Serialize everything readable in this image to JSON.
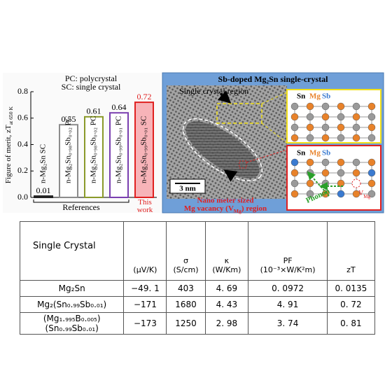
{
  "chart_data": {
    "type": "bar",
    "title": [
      "PC: polycrystal",
      "SC: single crystal"
    ],
    "y_label": {
      "text": "Figure of merit, zT",
      "sub": "at 650 K"
    },
    "categories": [
      "n-Mg₂Sn SC",
      "n-Mg₂Sn₀.₉₈Sb₀.₀₂ PC",
      "n-Mg₂Sn₀.₉₈Sb₀.₀₂ PC",
      "n-Mg₂Sn₀.₉₉Sb₀.₀₁ PC",
      "n-Mg₂Sn₀.₉₉Sb₀.₀₁ SC"
    ],
    "values": [
      0.01,
      0.55,
      0.61,
      0.64,
      0.72
    ],
    "colors": [
      "#222222",
      "#8c8c8c",
      "#8a9a2a",
      "#7a3fb0",
      "#e02020"
    ],
    "fills": [
      "#ffffff",
      "#ffffff",
      "#ffffff",
      "#ffffff",
      "#f7b3b8"
    ],
    "ylim": [
      0,
      0.8
    ],
    "yticks": [
      {
        "value": 0,
        "label": "0.0"
      },
      0.2,
      0.4,
      0.6,
      0.8
    ],
    "annotations": [
      "References",
      "This work"
    ]
  },
  "image_panel": {
    "title": "Sb-doped Mg₂Sn single-crystal",
    "region_label": "Single crystal region",
    "scale_bar": "3 nm",
    "vacancy_label": [
      "Nano meter sized",
      {
        "text": "Mg vacancy (V",
        "sub": "Mg",
        "tail": ") region"
      }
    ],
    "lattice_top": {
      "legend": [
        "Sn",
        "Mg",
        "Sb"
      ]
    },
    "lattice_bottom": {
      "legend": [
        "Sn",
        "Mg",
        "Sb"
      ],
      "vacancy": {
        "text": "V",
        "sub": "Mg"
      },
      "phonon": "Phonon"
    }
  },
  "table": {
    "header": [
      [
        "Single Crystal"
      ],
      [
        "(μV/K)"
      ],
      [
        "σ",
        "(S/cm)"
      ],
      [
        "κ",
        "(W/Km)"
      ],
      [
        "PF",
        "(10⁻³×W/K²m)"
      ],
      [
        "zT"
      ]
    ],
    "rows": [
      [
        [
          "Mg₂Sn"
        ],
        "−49. 1",
        "403",
        "4. 69",
        "0. 0972",
        "0. 0135"
      ],
      [
        [
          "Mg₂(Sn₀.₉₉Sb₀.₀₁)"
        ],
        "−171",
        "1680",
        "4. 43",
        "4. 91",
        "0. 72"
      ],
      [
        [
          "(Mg₁.₉₉₅B₀.₀₀₅)",
          "(Sn₀.₉₉Sb₀.₀₁)"
        ],
        "−173",
        "1250",
        "2. 98",
        "3. 74",
        "0. 81"
      ]
    ]
  }
}
